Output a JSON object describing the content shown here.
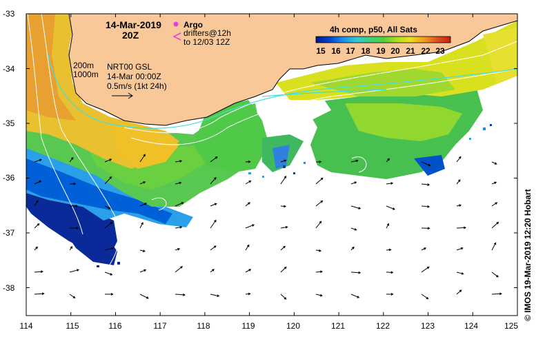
{
  "map": {
    "date": "14-Mar-2019",
    "time": "20Z",
    "argo_label": "Argo",
    "drifters_line1": "drifters@12h",
    "drifters_line2": "to 12/03 12Z",
    "contours_200": "200m",
    "contours_1000": "1000m",
    "gsl_line1": "NRT00 GSL",
    "gsl_line2": "14-Mar 00:00Z",
    "gsl_line3": "0.5m/s (1kt 24h)",
    "credit": "© IMOS 19-Mar-2019 12:20 Hobart",
    "lat_labels": [
      "-33",
      "-34",
      "-35",
      "-36",
      "-37",
      "-38"
    ],
    "lon_labels": [
      "114",
      "115",
      "116",
      "117",
      "118",
      "119",
      "120",
      "121",
      "122",
      "123",
      "124",
      "125"
    ]
  },
  "colorbar": {
    "title": "4h comp, p50, All Sats",
    "labels": [
      "15",
      "16",
      "17",
      "18",
      "19",
      "20",
      "21",
      "22",
      "23"
    ],
    "colors": [
      "#001a8c",
      "#0040d0",
      "#1a8cf0",
      "#30c8d8",
      "#40d080",
      "#50d040",
      "#a8e020",
      "#e8e020",
      "#f0a020",
      "#e05020",
      "#c02010"
    ]
  },
  "colors": {
    "land": "#f8c898",
    "ocean_empty": "#ffffff",
    "argo": "#e040e0",
    "drifter": "#e040e0",
    "contour": "#ffffff",
    "cyan_line": "#40e0e0"
  }
}
